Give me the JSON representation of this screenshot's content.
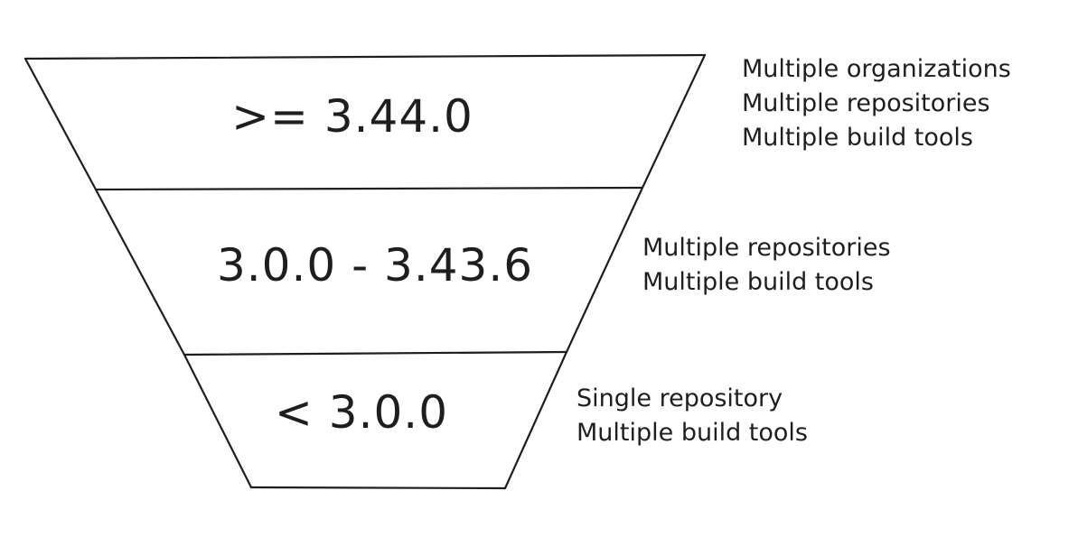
{
  "tiers": [
    {
      "label": ">= 3.44.0",
      "annotations": [
        "Multiple organizations",
        "Multiple repositories",
        "Multiple build tools"
      ]
    },
    {
      "label": "3.0.0 - 3.43.6",
      "annotations": [
        "Multiple repositories",
        "Multiple build tools"
      ]
    },
    {
      "label": "< 3.0.0",
      "annotations": [
        "Single repository",
        "Multiple build tools"
      ]
    }
  ],
  "colors": {
    "stroke": "#1e1e1e",
    "text": "#1e1e1e",
    "background": "#ffffff"
  }
}
